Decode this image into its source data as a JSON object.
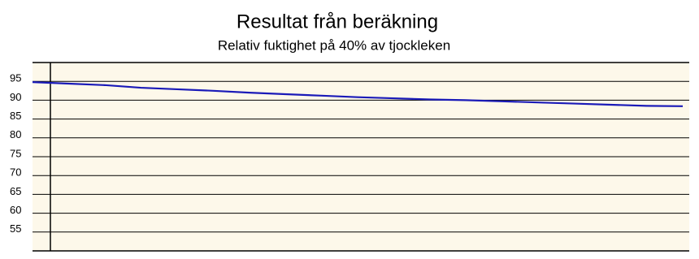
{
  "chart_data": {
    "type": "line",
    "title": "Resultat från beräkning",
    "subtitle": "Relativ fuktighet på 40% av tjockleken",
    "series": [
      {
        "color": "#1a1ab8",
        "values": [
          94.8,
          94.4,
          94.0,
          93.3,
          92.9,
          92.5,
          92.0,
          91.6,
          91.2,
          90.8,
          90.5,
          90.2,
          90.0,
          89.7,
          89.4,
          89.1,
          88.8,
          88.5,
          88.4
        ]
      }
    ],
    "ylim": [
      50,
      100
    ],
    "yticks": [
      55,
      60,
      65,
      70,
      75,
      80,
      85,
      90,
      95
    ],
    "grid": true,
    "background": "#fdf8ea"
  }
}
